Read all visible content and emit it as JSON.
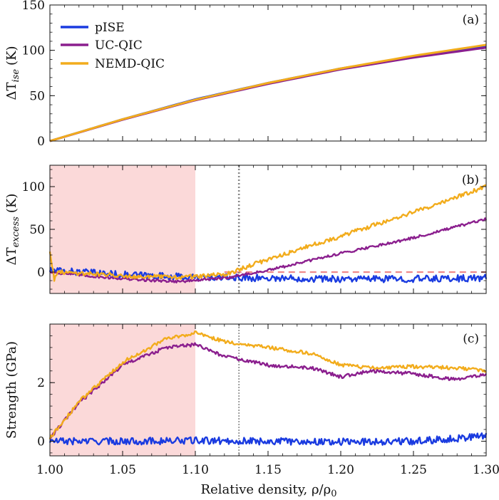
{
  "colors": {
    "pISE": "#1a3be0",
    "UC-QIC": "#8b1f8e",
    "NEMD-QIC": "#f2ac1c",
    "shade": "#fbd9d9",
    "zero_line": "#f08a8a",
    "vline": "#888888"
  },
  "chart_data": [
    {
      "id": "a",
      "type": "line",
      "panel_tag": "(a)",
      "ylabel_main": "ΔT",
      "ylabel_sub": "ise",
      "ylabel_unit": "(K)",
      "ylim": [
        0,
        150
      ],
      "yticks": [
        0,
        50,
        100,
        150
      ],
      "xlim": [
        1.0,
        1.3
      ],
      "legend": {
        "placement": "top-left",
        "entries": [
          "pISE",
          "UC-QIC",
          "NEMD-QIC"
        ]
      },
      "series": [
        {
          "name": "pISE",
          "x": [
            1.0,
            1.05,
            1.1,
            1.15,
            1.2,
            1.25,
            1.3
          ],
          "y": [
            0,
            24,
            46,
            64,
            80,
            93,
            104
          ]
        },
        {
          "name": "UC-QIC",
          "x": [
            1.0,
            1.05,
            1.1,
            1.15,
            1.2,
            1.25,
            1.3
          ],
          "y": [
            0,
            23.5,
            45,
            63,
            79,
            92,
            103
          ]
        },
        {
          "name": "NEMD-QIC",
          "x": [
            1.0,
            1.05,
            1.1,
            1.15,
            1.2,
            1.25,
            1.3
          ],
          "y": [
            0,
            24,
            45.5,
            64,
            80,
            94,
            106
          ]
        }
      ]
    },
    {
      "id": "b",
      "type": "line",
      "panel_tag": "(b)",
      "ylabel_main": "ΔT",
      "ylabel_sub": "excess",
      "ylabel_unit": "(K)",
      "ylim": [
        -25,
        125
      ],
      "yticks": [
        0,
        50,
        100
      ],
      "xlim": [
        1.0,
        1.3
      ],
      "shaded_region": [
        1.0,
        1.1
      ],
      "vline_x": 1.13,
      "zero_line": true,
      "series": [
        {
          "name": "pISE",
          "x": [
            1.0,
            1.05,
            1.1,
            1.15,
            1.2,
            1.25,
            1.3
          ],
          "y": [
            2,
            -3,
            -6,
            -7,
            -8,
            -8,
            -7
          ],
          "noise": 4
        },
        {
          "name": "UC-QIC",
          "x": [
            1.0,
            1.03,
            1.06,
            1.09,
            1.12,
            1.15,
            1.2,
            1.25,
            1.3
          ],
          "y": [
            0,
            -5,
            -9,
            -11,
            -7,
            2,
            22,
            40,
            62
          ],
          "noise": 1.5
        },
        {
          "name": "NEMD-QIC",
          "x": [
            1.0,
            1.003,
            1.006,
            1.03,
            1.06,
            1.09,
            1.12,
            1.15,
            1.2,
            1.25,
            1.3
          ],
          "y": [
            25,
            -8,
            0,
            -2,
            -5,
            -6,
            -3,
            15,
            42,
            70,
            100
          ],
          "noise": 2.5
        }
      ]
    },
    {
      "id": "c",
      "type": "line",
      "panel_tag": "(c)",
      "ylabel_main": "Strength (GPa)",
      "ylim": [
        -0.5,
        4.0
      ],
      "yticks": [
        0,
        2
      ],
      "xlim": [
        1.0,
        1.3
      ],
      "xlabel": "Relative density, ρ/ρ",
      "xlabel_sub": "0",
      "xticks": [
        "1.00",
        "1.05",
        "1.10",
        "1.15",
        "1.20",
        "1.25",
        "1.30"
      ],
      "shaded_region": [
        1.0,
        1.1
      ],
      "vline_x": 1.13,
      "series": [
        {
          "name": "pISE",
          "x": [
            1.0,
            1.05,
            1.1,
            1.15,
            1.2,
            1.25,
            1.28,
            1.3
          ],
          "y": [
            0.0,
            0.0,
            0.02,
            0.0,
            -0.02,
            0.0,
            0.1,
            0.2
          ],
          "noise": 0.12
        },
        {
          "name": "UC-QIC",
          "x": [
            1.0,
            1.02,
            1.05,
            1.08,
            1.1,
            1.12,
            1.15,
            1.18,
            1.2,
            1.22,
            1.25,
            1.28,
            1.3
          ],
          "y": [
            0.1,
            1.3,
            2.6,
            3.2,
            3.3,
            2.9,
            2.6,
            2.5,
            2.2,
            2.4,
            2.3,
            2.1,
            2.3
          ],
          "noise": 0.06
        },
        {
          "name": "NEMD-QIC",
          "x": [
            1.0,
            1.02,
            1.05,
            1.08,
            1.1,
            1.12,
            1.15,
            1.18,
            1.2,
            1.22,
            1.25,
            1.28,
            1.3
          ],
          "y": [
            0.1,
            1.35,
            2.7,
            3.5,
            3.7,
            3.4,
            3.2,
            3.0,
            2.6,
            2.5,
            2.55,
            2.5,
            2.4
          ],
          "noise": 0.06
        }
      ]
    }
  ]
}
